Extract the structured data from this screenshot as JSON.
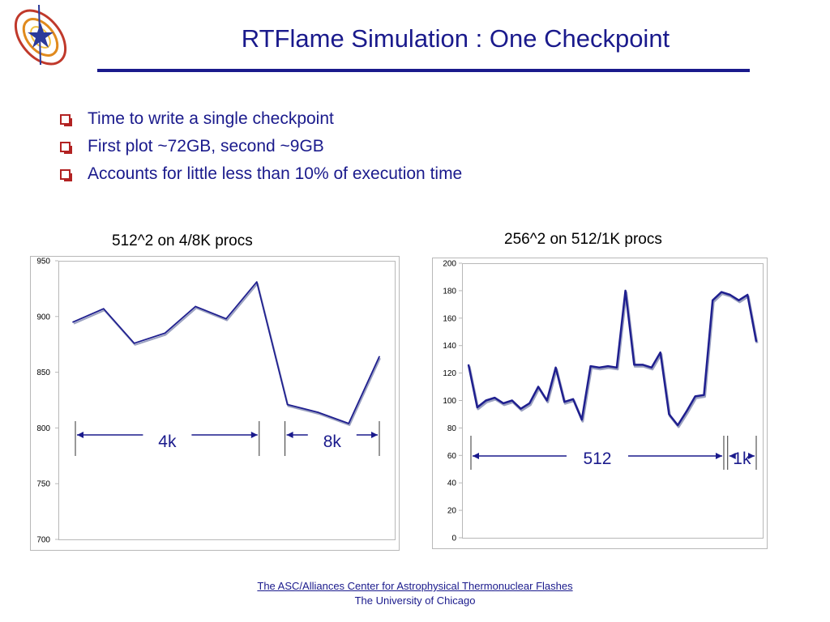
{
  "slide": {
    "title": "RTFlame Simulation : One Checkpoint",
    "bullets": [
      "Time to write a single checkpoint",
      "First plot ~72GB, second ~9GB",
      "Accounts for little less than 10% of execution time"
    ],
    "footer": {
      "line1": "The ASC/Alliances Center for Astrophysical Thermonuclear Flashes",
      "line2": "The University of Chicago"
    }
  },
  "colors": {
    "title": "#1a1a8c",
    "bullet_box": "#b22222",
    "series": "#1f1f8f",
    "series_shadow": "#9aa0c0",
    "plot_border": "#b8b8b8",
    "annotation": "#1a1a8c"
  },
  "chart_data": [
    {
      "type": "line",
      "title": "512^2 on 4/8K procs",
      "xlabel": "",
      "ylabel": "",
      "ylim": [
        700,
        950
      ],
      "yticks": [
        700,
        750,
        800,
        850,
        900,
        950
      ],
      "grid": false,
      "series": [
        {
          "values": [
            895,
            907,
            876,
            885,
            909,
            898,
            931,
            821,
            814,
            804,
            864
          ]
        }
      ],
      "annotations": [
        {
          "label": "4k",
          "from_index": 0,
          "to_index": 6
        },
        {
          "label": "8k",
          "from_index": 7,
          "to_index": 10
        }
      ]
    },
    {
      "type": "line",
      "title": "256^2 on 512/1K procs",
      "xlabel": "",
      "ylabel": "",
      "ylim": [
        0,
        200
      ],
      "yticks": [
        0,
        20,
        40,
        60,
        80,
        100,
        120,
        140,
        160,
        180,
        200
      ],
      "grid": false,
      "series": [
        {
          "values": [
            126,
            95,
            100,
            102,
            98,
            100,
            94,
            98,
            110,
            100,
            124,
            99,
            101,
            86,
            125,
            124,
            125,
            124,
            180,
            126,
            126,
            124,
            135,
            90,
            82,
            92,
            103,
            104,
            173,
            179,
            177,
            173,
            177,
            143
          ]
        }
      ],
      "annotations": [
        {
          "label": "512",
          "from_index": 0,
          "to_index": 29
        },
        {
          "label": "1k",
          "from_index": 30,
          "to_index": 33
        }
      ]
    }
  ]
}
